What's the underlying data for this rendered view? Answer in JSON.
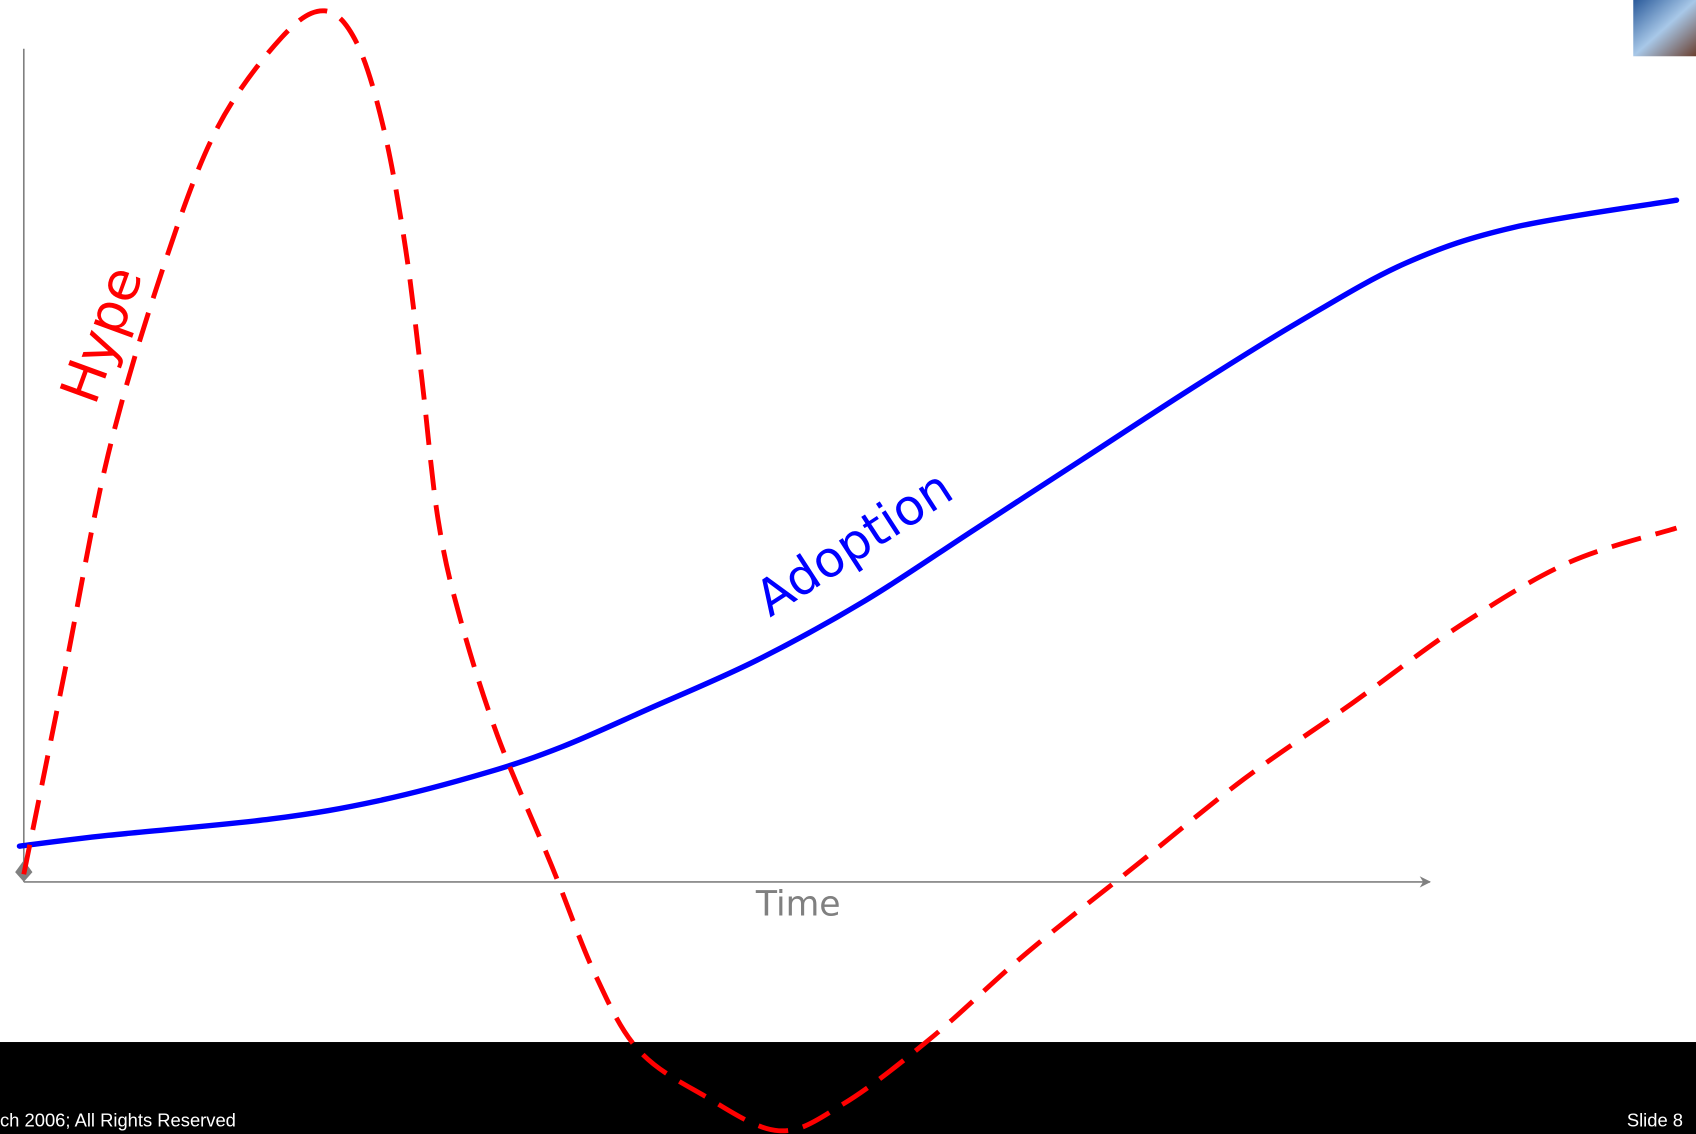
{
  "labels": {
    "hype": "Hype",
    "adoption": "Adoption",
    "x_axis": "Time"
  },
  "footer": {
    "copyright": "ch 2006; All Rights Reserved",
    "slide": "Slide 8"
  }
}
